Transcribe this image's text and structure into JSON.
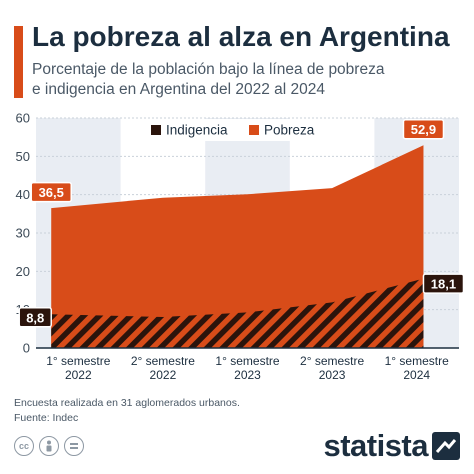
{
  "title": "La pobreza al alza en Argentina",
  "subtitle_lines": [
    "Porcentaje de la población bajo la línea de pobreza",
    "e indigencia en Argentina del 2022 al 2024"
  ],
  "footnote": {
    "note": "Encuesta realizada en 31 aglomerados urbanos.",
    "source": "Fuente: Indec"
  },
  "brand": "statista",
  "colors": {
    "accent": "#d84c19",
    "pobreza": "#d84c19",
    "indigencia": "#2b140c",
    "band": "#e9edf3",
    "title": "#1c2e3f"
  },
  "icons": [
    "cc-icon",
    "person-icon",
    "equals-icon"
  ],
  "chart_data": {
    "type": "area",
    "categories": [
      [
        "1° semestre",
        "2022"
      ],
      [
        "2° semestre",
        "2022"
      ],
      [
        "1° semestre",
        "2023"
      ],
      [
        "2° semestre",
        "2023"
      ],
      [
        "1° semestre",
        "2024"
      ]
    ],
    "series": [
      {
        "name": "Pobreza",
        "values": [
          36.5,
          39.2,
          40.1,
          41.7,
          52.9
        ],
        "labels": [
          "36,5",
          "",
          "",
          "",
          "52,9"
        ]
      },
      {
        "name": "Indigencia",
        "values": [
          8.8,
          8.1,
          9.3,
          11.9,
          18.1
        ],
        "labels": [
          "8,8",
          "",
          "",
          "",
          "18,1"
        ]
      }
    ],
    "ylim": [
      0,
      60
    ],
    "yticks": [
      0,
      10,
      20,
      30,
      40,
      50,
      60
    ],
    "grid": true,
    "legend": "top-center"
  }
}
